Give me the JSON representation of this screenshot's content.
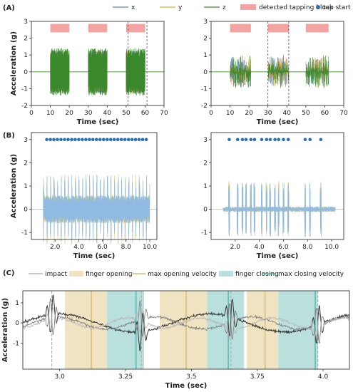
{
  "panels": [
    {
      "label": "(A)"
    },
    {
      "label": "(B)"
    },
    {
      "label": "(C)"
    }
  ],
  "legend_a": {
    "items": [
      {
        "name": "x",
        "color": "#5b7fd6",
        "kind": "line"
      },
      {
        "name": "y",
        "color": "#e8a33d",
        "kind": "line"
      },
      {
        "name": "z",
        "color": "#3b8a2e",
        "kind": "line"
      },
      {
        "name": "detected tapping block",
        "color": "#f4a3a3",
        "kind": "patch"
      },
      {
        "name": "tap start",
        "color": "#2b6fb2",
        "kind": "dot"
      }
    ]
  },
  "legend_c": {
    "items": [
      {
        "name": "impact",
        "color": "#aaaaaa",
        "kind": "line"
      },
      {
        "name": "finger opening",
        "color": "#efe3c1",
        "kind": "patch"
      },
      {
        "name": "max opening velocity",
        "color": "#d9ad52",
        "kind": "line"
      },
      {
        "name": "finger closing",
        "color": "#b9e0dc",
        "kind": "patch"
      },
      {
        "name": "max closing velocity",
        "color": "#36a99f",
        "kind": "line"
      }
    ]
  },
  "chart_data": [
    {
      "id": "A-left",
      "type": "line",
      "xlabel": "Time (sec)",
      "ylabel": "Acceleration (g)",
      "xlim": [
        0,
        70
      ],
      "ylim": [
        -2,
        3
      ],
      "xticks": [
        0,
        10,
        20,
        30,
        40,
        50,
        60,
        70
      ],
      "yticks": [
        -2,
        -1,
        0,
        1,
        2,
        3
      ],
      "series": [
        {
          "name": "x"
        },
        {
          "name": "y"
        },
        {
          "name": "z"
        }
      ],
      "tapping_blocks": [
        [
          10,
          20
        ],
        [
          30,
          40
        ],
        [
          50,
          60
        ]
      ],
      "block_amplitude": 1.4,
      "dashed_lines": [
        51,
        61
      ]
    },
    {
      "id": "A-right",
      "type": "line",
      "xlabel": "Time (sec)",
      "ylabel": "",
      "xlim": [
        0,
        70
      ],
      "ylim": [
        -2,
        3
      ],
      "xticks": [
        0,
        10,
        20,
        30,
        40,
        50,
        60,
        70
      ],
      "yticks": [
        -2,
        -1,
        0,
        1,
        2,
        3
      ],
      "series": [
        {
          "name": "x"
        },
        {
          "name": "y"
        },
        {
          "name": "z"
        }
      ],
      "tapping_blocks": [
        [
          10,
          21
        ],
        [
          30,
          41
        ],
        [
          50,
          62
        ]
      ],
      "block_amplitude": 1.0,
      "dashed_lines": [
        30,
        41
      ]
    },
    {
      "id": "B-left",
      "type": "line",
      "xlabel": "Time (sec)",
      "ylabel": "Acceleration (g)",
      "xlim": [
        0,
        10.6
      ],
      "ylim": [
        -1.3,
        3.3
      ],
      "xticks": [
        2.0,
        4.0,
        6.0,
        8.0,
        10.0
      ],
      "xticklabels": [
        "2.0",
        "4.0",
        "6.0",
        "8.0",
        "10.0"
      ],
      "yticks": [
        -1,
        0,
        1,
        2,
        3
      ],
      "series": [
        {
          "name": "x"
        },
        {
          "name": "y"
        },
        {
          "name": "z"
        }
      ],
      "signal_range": [
        1.0,
        10.0
      ],
      "tap_starts": [
        1.3,
        1.6,
        1.9,
        2.2,
        2.5,
        2.8,
        3.1,
        3.4,
        3.7,
        4.0,
        4.3,
        4.6,
        4.9,
        5.2,
        5.5,
        5.8,
        6.1,
        6.4,
        6.7,
        7.0,
        7.3,
        7.6,
        7.9,
        8.2,
        8.5,
        8.8,
        9.1,
        9.4,
        9.7
      ],
      "tap_marker_y": 3
    },
    {
      "id": "B-right",
      "type": "line",
      "xlabel": "Time (sec)",
      "ylabel": "",
      "xlim": [
        0,
        11
      ],
      "ylim": [
        -1.3,
        3.3
      ],
      "xticks": [
        2.0,
        4.0,
        6.0,
        8.0,
        10.0
      ],
      "xticklabels": [
        "2.0",
        "4.0",
        "6.0",
        "8.0",
        "10.0"
      ],
      "yticks": [
        -1,
        0,
        1,
        2,
        3
      ],
      "series": [
        {
          "name": "x"
        },
        {
          "name": "y"
        },
        {
          "name": "z"
        }
      ],
      "signal_range": [
        1.0,
        10.3
      ],
      "tap_starts": [
        1.5,
        2.2,
        2.6,
        2.9,
        3.3,
        3.6,
        4.2,
        4.6,
        4.9,
        5.3,
        5.6,
        6.0,
        6.4,
        7.8,
        8.2,
        9.1
      ],
      "tap_marker_y": 3
    },
    {
      "id": "C",
      "type": "line",
      "xlabel": "Time (sec)",
      "ylabel": "Acceleration (g)",
      "xlim": [
        2.86,
        4.1
      ],
      "ylim": [
        -2.3,
        1.6
      ],
      "xticks": [
        3.0,
        3.25,
        3.5,
        3.75,
        4.0
      ],
      "xticklabels": [
        "3.0",
        "3.25",
        "3.5",
        "3.75",
        "4.0"
      ],
      "yticks": [
        -1,
        0,
        1
      ],
      "finger_opening": [
        [
          3.02,
          3.18
        ],
        [
          3.38,
          3.56
        ],
        [
          3.71,
          3.83
        ]
      ],
      "finger_closing": [
        [
          3.18,
          3.32
        ],
        [
          3.56,
          3.7
        ],
        [
          3.83,
          3.98
        ]
      ],
      "max_opening_velocity": [
        3.12,
        3.48,
        3.78
      ],
      "max_closing_velocity": [
        3.29,
        3.64,
        3.97
      ],
      "impacts": [
        2.97,
        3.31,
        3.65,
        3.98
      ]
    }
  ]
}
